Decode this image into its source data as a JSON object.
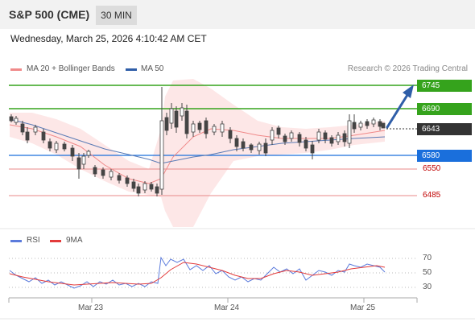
{
  "header": {
    "title": "S&P 500 (CME)",
    "timeframe": "30 MIN"
  },
  "datetime": "Wednesday, March 25, 2026 4:10:42 AM CET",
  "legend": {
    "ma20": "MA 20 + Bollinger Bands",
    "ma50": "MA 50",
    "credit": "Research © 2026 Trading Central",
    "rsi": "RSI",
    "rsi_ma": "9MA"
  },
  "colors": {
    "up": "#35a31c",
    "current": "#333333",
    "support": "#1a6fdc",
    "red": "#e33b3b",
    "bollinger": "#fde4e4",
    "ma20": "#f08a8a",
    "ma50": "#5b7bb5",
    "arrow": "#2f5ea8"
  },
  "levels": {
    "r2": "6745",
    "r1": "6690",
    "current": "6643",
    "s1": "6580",
    "s2": "6550",
    "s3": "6485"
  },
  "rsi_levels": [
    "70",
    "50",
    "30"
  ],
  "x_labels": [
    "Mar 23",
    "Mar 24",
    "Mar 25"
  ],
  "chart_data": {
    "type": "line",
    "price_levels": [
      6745,
      6690,
      6643,
      6580,
      6550,
      6485
    ],
    "x": [
      "Mar 23",
      "Mar 24",
      "Mar 25"
    ],
    "rsi_scale": [
      30,
      50,
      70
    ]
  }
}
